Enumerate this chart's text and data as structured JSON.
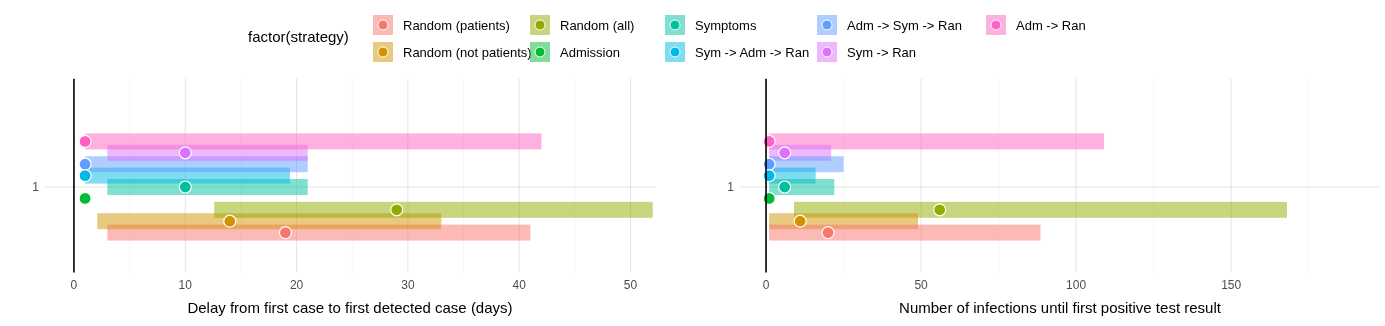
{
  "chart_data": [
    {
      "type": "bar",
      "orientation": "horizontal",
      "categories": [
        null,
        null,
        null,
        null,
        null,
        null,
        null,
        null,
        null,
        null,
        null,
        null,
        null,
        null,
        null,
        null,
        null
      ],
      "annotations": [
        "1"
      ],
      "xlabel": "Delay from first case to first detected case (days)",
      "legend_title": "factor(strategy)",
      "legend": "top",
      "grid": true,
      "xlim": [
        -2.6,
        52.2
      ],
      "xticks": [
        0,
        {
          "value": 5,
          "label": null
        },
        10,
        {
          "value": 15,
          "label": null
        },
        20,
        {
          "value": 25,
          "label": null
        },
        30,
        {
          "value": 35,
          "label": null
        },
        40,
        {
          "value": 45,
          "label": null
        },
        50
      ],
      "series": [
        {
          "name": "Random (patients)",
          "color": "#f8766d",
          "values": [
            null,
            null,
            null,
            null,
            null,
            null,
            null,
            null,
            null,
            null,
            null,
            null,
            null,
            38,
            null,
            null,
            null
          ],
          "base": [
            null,
            null,
            null,
            null,
            null,
            null,
            null,
            null,
            null,
            null,
            null,
            null,
            null,
            3,
            null,
            null,
            null
          ]
        },
        {
          "name": "Random (not patients)",
          "color": "#d39200",
          "values": [
            null,
            null,
            null,
            null,
            null,
            null,
            null,
            null,
            null,
            null,
            null,
            null,
            30.9,
            null,
            null,
            null,
            null
          ],
          "base": [
            null,
            null,
            null,
            null,
            null,
            null,
            null,
            null,
            null,
            null,
            null,
            null,
            2.1,
            null,
            null,
            null,
            null
          ]
        },
        {
          "name": "Random (all)",
          "color": "#93aa00",
          "values": [
            null,
            null,
            null,
            null,
            null,
            null,
            null,
            null,
            null,
            null,
            null,
            39.4,
            null,
            null,
            null,
            null,
            null
          ],
          "base": [
            null,
            null,
            null,
            null,
            null,
            null,
            null,
            null,
            null,
            null,
            null,
            12.6,
            null,
            null,
            null,
            null,
            null
          ]
        },
        {
          "name": "Admission",
          "color": "#00ba38",
          "values": [
            null,
            null,
            null,
            null,
            null,
            null,
            null,
            null,
            null,
            null,
            null,
            null,
            null,
            null,
            null,
            null,
            null
          ]
        },
        {
          "name": "Symptoms",
          "color": "#00c19f",
          "values": [
            null,
            null,
            null,
            null,
            null,
            null,
            null,
            null,
            null,
            18,
            null,
            null,
            null,
            null,
            null,
            null,
            null
          ],
          "base": [
            null,
            null,
            null,
            null,
            null,
            null,
            null,
            null,
            null,
            3,
            null,
            null,
            null,
            null,
            null,
            null,
            null
          ]
        },
        {
          "name": "Sym -> Adm -> Ran",
          "color": "#00b9e3",
          "values": [
            null,
            null,
            null,
            null,
            null,
            null,
            null,
            null,
            18.4,
            null,
            null,
            null,
            null,
            null,
            null,
            null,
            null
          ],
          "base": [
            null,
            null,
            null,
            null,
            null,
            null,
            null,
            null,
            1,
            null,
            null,
            null,
            null,
            null,
            null,
            null,
            null
          ]
        },
        {
          "name": "Adm -> Sym -> Ran",
          "color": "#619cff",
          "values": [
            null,
            null,
            null,
            null,
            null,
            null,
            null,
            20,
            null,
            null,
            null,
            null,
            null,
            null,
            null,
            null,
            null
          ],
          "base": [
            null,
            null,
            null,
            null,
            null,
            null,
            null,
            1,
            null,
            null,
            null,
            null,
            null,
            null,
            null,
            null,
            null
          ]
        },
        {
          "name": "Sym -> Ran",
          "color": "#db72fb",
          "values": [
            null,
            null,
            null,
            null,
            null,
            null,
            18,
            null,
            null,
            null,
            null,
            null,
            null,
            null,
            null,
            null,
            null
          ],
          "base": [
            null,
            null,
            null,
            null,
            null,
            null,
            3,
            null,
            null,
            null,
            null,
            null,
            null,
            null,
            null,
            null,
            null
          ]
        },
        {
          "name": "Adm -> Ran",
          "color": "#ff61c3",
          "values": [
            null,
            null,
            null,
            null,
            null,
            41,
            null,
            null,
            null,
            null,
            null,
            null,
            null,
            null,
            null,
            null,
            null
          ],
          "base": [
            null,
            null,
            null,
            null,
            null,
            1,
            null,
            null,
            null,
            null,
            null,
            null,
            null,
            null,
            null,
            null,
            null
          ]
        },
        {
          "type": "scatter",
          "values": [
            null,
            null,
            null,
            null,
            null,
            1,
            10,
            1,
            1,
            10,
            1,
            29,
            14,
            19,
            null,
            null,
            null
          ],
          "colors": [
            null,
            null,
            null,
            null,
            null,
            "#ff61c3",
            "#db72fb",
            "#619cff",
            "#00b9e3",
            "#00c19f",
            "#00ba38",
            "#93aa00",
            "#d39200",
            "#f8766d",
            null,
            null,
            null
          ]
        }
      ]
    },
    {
      "type": "bar",
      "orientation": "horizontal",
      "categories": [
        null,
        null,
        null,
        null,
        null,
        null,
        null,
        null,
        null,
        null,
        null,
        null,
        null,
        null,
        null,
        null,
        null
      ],
      "annotations": [
        "1"
      ],
      "xlabel": "Number of infections until first positive test result",
      "grid": true,
      "xlim": [
        -8.4,
        198
      ],
      "xticks": [
        0,
        {
          "value": 25,
          "label": null
        },
        50,
        {
          "value": 75,
          "label": null
        },
        100,
        {
          "value": 125,
          "label": null
        },
        150,
        {
          "value": 175,
          "label": null
        }
      ],
      "series": [
        {
          "values": [
            null,
            null,
            null,
            null,
            null,
            108,
            20,
            24,
            15,
            21,
            null,
            159,
            48,
            87.5,
            null,
            null,
            null
          ],
          "base": [
            null,
            null,
            null,
            null,
            null,
            1,
            1,
            1,
            1,
            1,
            null,
            9,
            1,
            1,
            null,
            null,
            null
          ],
          "colors": [
            null,
            null,
            null,
            null,
            null,
            "#ff61c3",
            "#db72fb",
            "#619cff",
            "#00b9e3",
            "#00c19f",
            null,
            "#93aa00",
            "#d39200",
            "#f8766d",
            null,
            null,
            null
          ]
        },
        {
          "type": "scatter",
          "values": [
            null,
            null,
            null,
            null,
            null,
            1,
            6,
            1,
            1,
            6,
            1,
            56,
            11,
            20,
            null,
            null,
            null
          ],
          "colors": [
            null,
            null,
            null,
            null,
            null,
            "#ff61c3",
            "#db72fb",
            "#619cff",
            "#00b9e3",
            "#00c19f",
            "#00ba38",
            "#93aa00",
            "#d39200",
            "#f8766d",
            null,
            null,
            null
          ]
        }
      ]
    }
  ]
}
